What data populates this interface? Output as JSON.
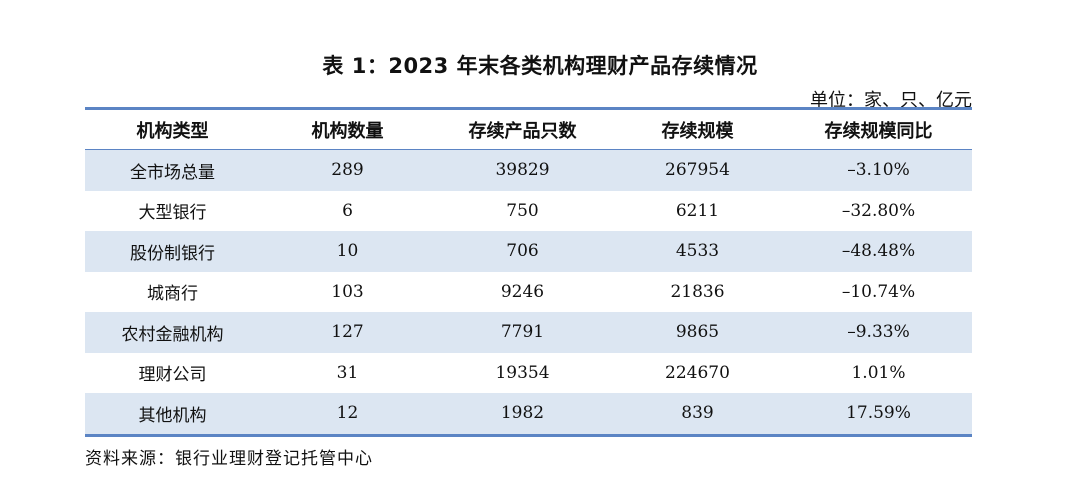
{
  "title": "表 1：2023 年末各类机构理财产品存续情况",
  "unit": "单位：家、只、亿元",
  "headers": [
    "机构类型",
    "机构数量",
    "存续产品只数",
    "存续规模",
    "存续规模同比"
  ],
  "rows": [
    [
      "全市场总量",
      "289",
      "39829",
      "267954",
      "–3.10%"
    ],
    [
      "大型银行",
      "6",
      "750",
      "6211",
      "–32.80%"
    ],
    [
      "股份制银行",
      "10",
      "706",
      "4533",
      "–48.48%"
    ],
    [
      "城商行",
      "103",
      "9246",
      "21836",
      "–10.74%"
    ],
    [
      "农村金融机构",
      "127",
      "7791",
      "9865",
      "–9.33%"
    ],
    [
      "理财公司",
      "31",
      "19354",
      "224670",
      "1.01%"
    ],
    [
      "其他机构",
      "12",
      "1982",
      "839",
      "17.59%"
    ]
  ],
  "source": "资料来源：银行业理财登记托管中心",
  "colors": {
    "rule": "#5b84c4",
    "row_shade": "#dce6f2"
  }
}
